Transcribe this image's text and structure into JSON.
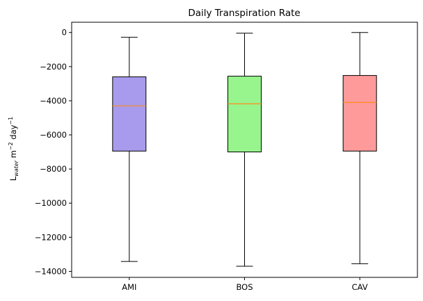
{
  "chart_data": {
    "type": "box",
    "title": "Daily Transpiration Rate",
    "xlabel": "",
    "ylabel": {
      "prefix": "L",
      "subscript": "water",
      "unit1": " m",
      "sup1": "−2",
      "unit2": " day",
      "sup2": "−1"
    },
    "ylim": [
      -14350,
      600
    ],
    "yticks": [
      0,
      -2000,
      -4000,
      -6000,
      -8000,
      -10000,
      -12000,
      -14000
    ],
    "ytick_labels": [
      "0",
      "−2000",
      "−4000",
      "−6000",
      "−8000",
      "−10000",
      "−12000",
      "−14000"
    ],
    "categories": [
      "AMI",
      "BOS",
      "CAV"
    ],
    "boxes": [
      {
        "name": "AMI",
        "whisker_low": -13420,
        "q1": -6950,
        "median": -4300,
        "q3": -2600,
        "whisker_high": -280,
        "color": "#a89bed"
      },
      {
        "name": "BOS",
        "whisker_low": -13700,
        "q1": -7000,
        "median": -4180,
        "q3": -2560,
        "whisker_high": -40,
        "color": "#98f48d"
      },
      {
        "name": "CAV",
        "whisker_low": -13550,
        "q1": -6950,
        "median": -4100,
        "q3": -2520,
        "whisker_high": 0,
        "color": "#ff9a9a"
      }
    ],
    "median_color": "#ff8c1a",
    "grid": false,
    "legend": "none"
  }
}
